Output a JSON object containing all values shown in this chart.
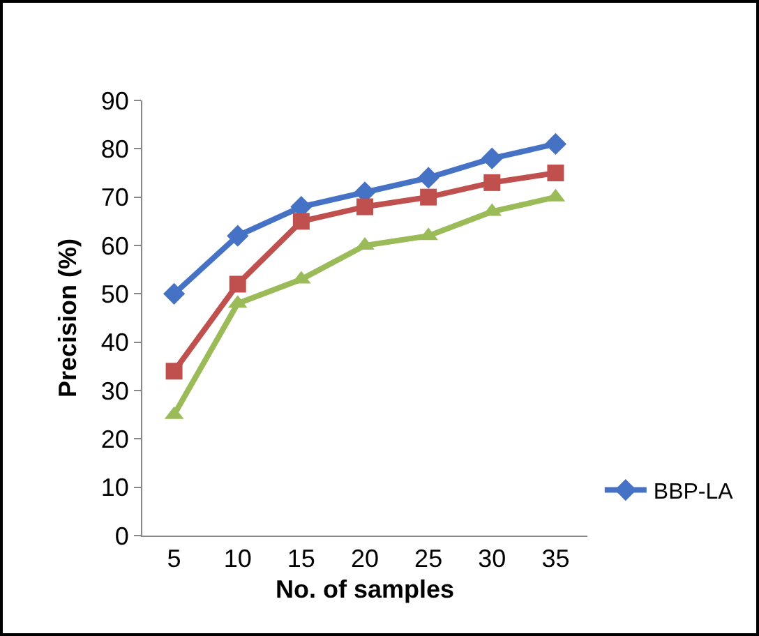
{
  "chart_data": {
    "type": "line",
    "xlabel": "No. of samples",
    "ylabel": "Precision (%)",
    "categories": [
      "5",
      "10",
      "15",
      "20",
      "25",
      "30",
      "35"
    ],
    "ylim": [
      0,
      90
    ],
    "yticks": [
      0,
      10,
      20,
      30,
      40,
      50,
      60,
      70,
      80,
      90
    ],
    "grid": false,
    "legend": "bottom right",
    "series": [
      {
        "name": "BBP-LA",
        "color": "#4572c4",
        "marker": "diamond",
        "values": [
          50,
          62,
          68,
          71,
          74,
          78,
          81
        ]
      },
      {
        "color": "#c0504d",
        "marker": "square",
        "values": [
          34,
          52,
          65,
          68,
          70,
          73,
          75
        ]
      },
      {
        "color": "#9bbb59",
        "marker": "triangle",
        "values": [
          25,
          48,
          53,
          60,
          62,
          67,
          70
        ]
      }
    ]
  }
}
